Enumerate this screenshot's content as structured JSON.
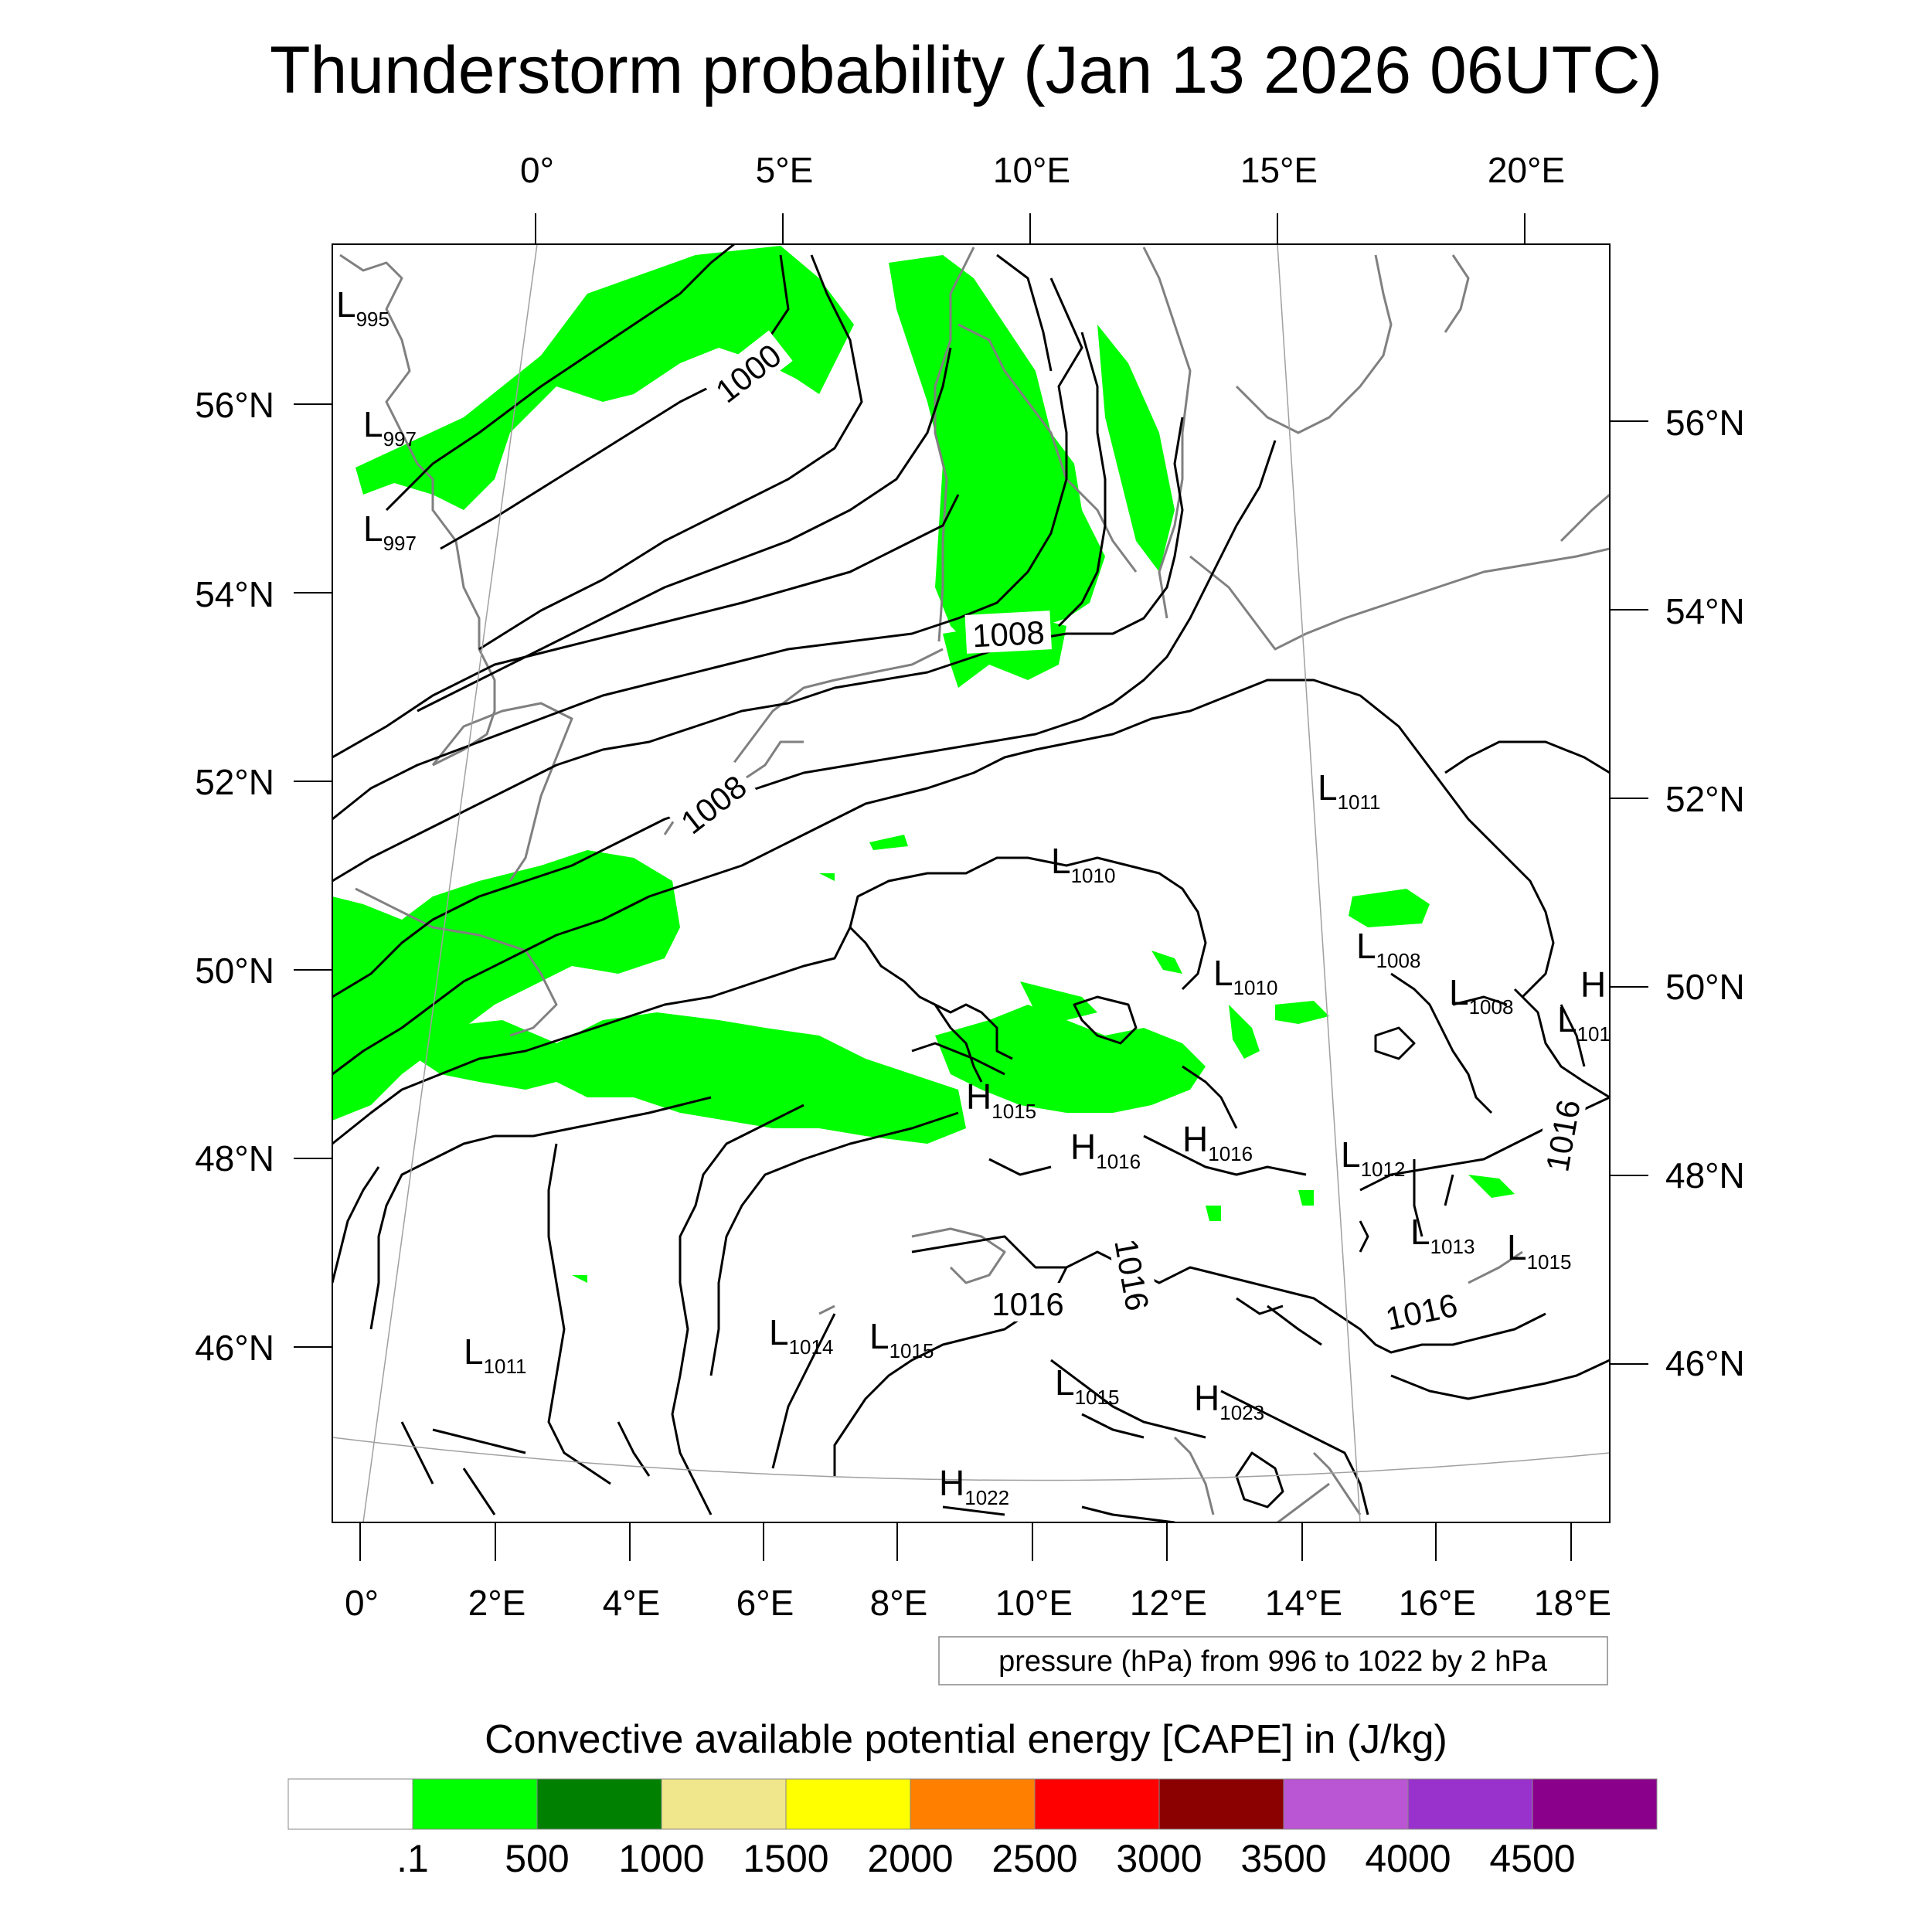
{
  "title": "Thunderstorm probability (Jan 13 2026 06UTC)",
  "top_lon_labels": [
    "0°",
    "5°E",
    "10°E",
    "15°E",
    "20°E"
  ],
  "bottom_lon_labels": [
    "0°",
    "2°E",
    "4°E",
    "6°E",
    "8°E",
    "10°E",
    "12°E",
    "14°E",
    "16°E",
    "18°E"
  ],
  "left_lat_labels": [
    "56°N",
    "54°N",
    "52°N",
    "50°N",
    "48°N",
    "46°N"
  ],
  "right_lat_labels": [
    "56°N",
    "54°N",
    "52°N",
    "50°N",
    "48°N",
    "46°N"
  ],
  "isobar_labels": [
    "1000",
    "1008",
    "1008",
    "1016",
    "1016",
    "1016",
    "1016"
  ],
  "pressure_systems": [
    {
      "type": "L",
      "value": "995"
    },
    {
      "type": "L",
      "value": "997"
    },
    {
      "type": "L",
      "value": "997"
    },
    {
      "type": "L",
      "value": "1011"
    },
    {
      "type": "L",
      "value": "1010"
    },
    {
      "type": "L",
      "value": "1008"
    },
    {
      "type": "L",
      "value": "1010"
    },
    {
      "type": "L",
      "value": "1008"
    },
    {
      "type": "H",
      "value": ""
    },
    {
      "type": "L",
      "value": "101"
    },
    {
      "type": "H",
      "value": "1015"
    },
    {
      "type": "H",
      "value": "1016"
    },
    {
      "type": "H",
      "value": "1016"
    },
    {
      "type": "L",
      "value": "1012"
    },
    {
      "type": "L",
      "value": "1013"
    },
    {
      "type": "L",
      "value": "1015"
    },
    {
      "type": "L",
      "value": "1011"
    },
    {
      "type": "L",
      "value": "1014"
    },
    {
      "type": "L",
      "value": "1015"
    },
    {
      "type": "L",
      "value": "1015"
    },
    {
      "type": "H",
      "value": "1023"
    },
    {
      "type": "H",
      "value": "1022"
    }
  ],
  "contour_note": "pressure (hPa) from 996 to 1022 by 2 hPa",
  "colorbar": {
    "title": "Convective available potential energy [CAPE] in (J/kg)",
    "colors": [
      "#ffffff",
      "#00ff00",
      "#008000",
      "#f0e68c",
      "#ffff00",
      "#ff8000",
      "#ff0000",
      "#8b0000",
      "#ba55d3",
      "#9932cc",
      "#8b008b"
    ],
    "tick_labels": [
      ".1",
      "500",
      "1000",
      "1500",
      "2000",
      "2500",
      "3000",
      "3500",
      "4000",
      "4500"
    ]
  },
  "colors": {
    "cape_fill": "#00ff00",
    "isobar": "#000000",
    "coastline": "#808080",
    "graticule": "#a0a0a0"
  }
}
